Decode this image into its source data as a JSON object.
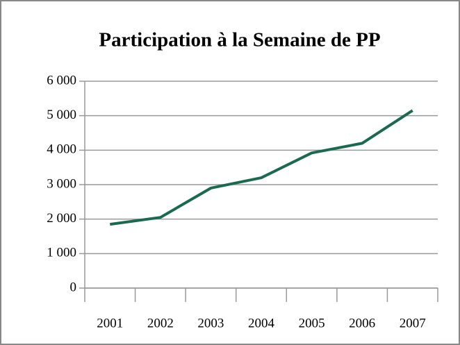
{
  "chart_data": {
    "type": "line",
    "title": "Participation à la Semaine de PP",
    "categories": [
      "2001",
      "2002",
      "2003",
      "2004",
      "2005",
      "2006",
      "2007"
    ],
    "series": [
      {
        "name": "Participation",
        "color": "#1a6b4e",
        "values": [
          1850,
          2050,
          2900,
          3200,
          3920,
          4200,
          5150
        ]
      }
    ],
    "ylim": [
      0,
      6000
    ],
    "yticks": [
      {
        "value": 0,
        "label": "0"
      },
      {
        "value": 1000,
        "label": "1 000"
      },
      {
        "value": 2000,
        "label": "2 000"
      },
      {
        "value": 3000,
        "label": "3 000"
      },
      {
        "value": 4000,
        "label": "4 000"
      },
      {
        "value": 5000,
        "label": "5 000"
      },
      {
        "value": 6000,
        "label": "6 000"
      }
    ],
    "grid": true
  }
}
